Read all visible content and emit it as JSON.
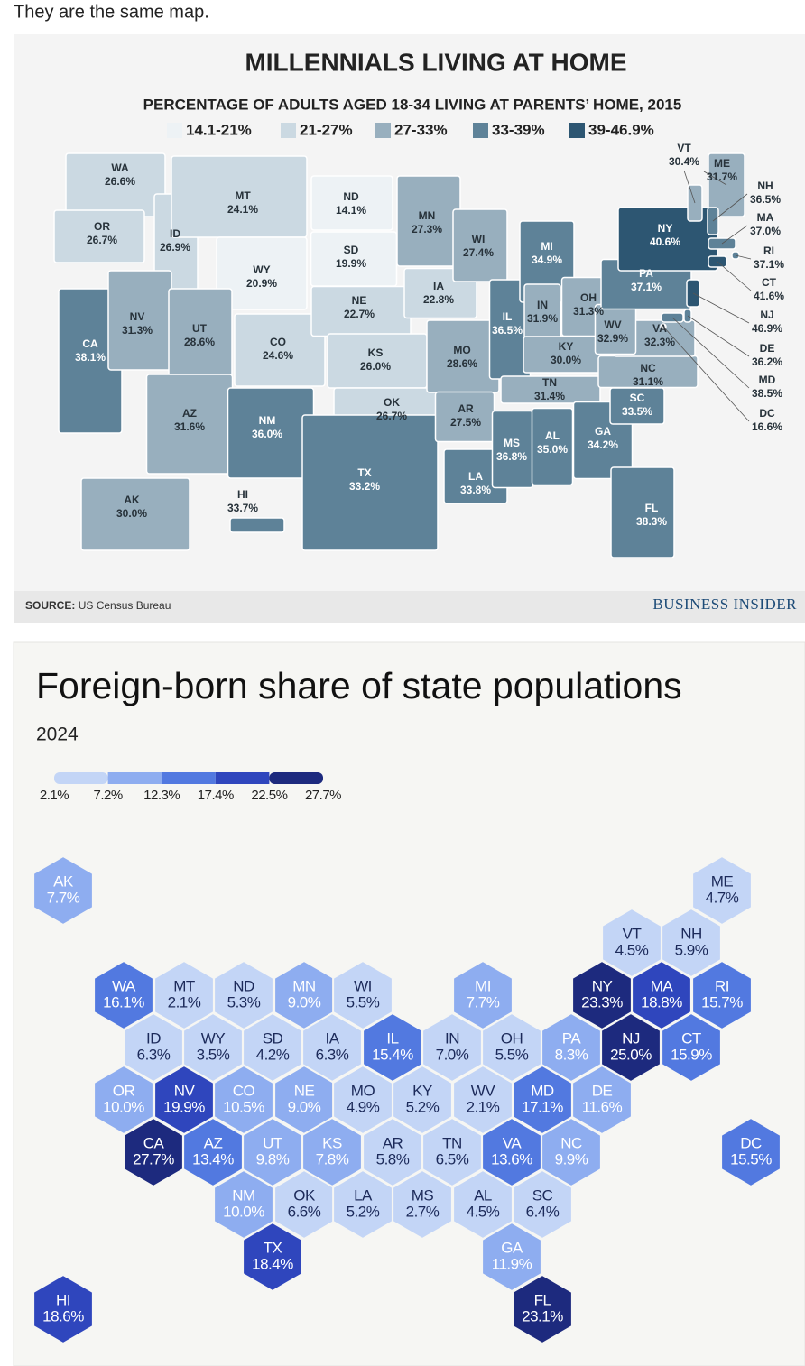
{
  "caption": "They are the same map.",
  "map1": {
    "title": "MILLENNIALS LIVING AT HOME",
    "subtitle": "PERCENTAGE OF ADULTS AGED 18-34 LIVING AT PARENTS’ HOME, 2015",
    "legend": [
      {
        "label": "14.1-21%",
        "from": 14.1,
        "to": 21,
        "color": "#edf2f5"
      },
      {
        "label": "21-27%",
        "from": 21,
        "to": 27,
        "color": "#cbd9e2"
      },
      {
        "label": "27-33%",
        "from": 27,
        "to": 33,
        "color": "#98afbe"
      },
      {
        "label": "33-39%",
        "from": 33,
        "to": 39,
        "color": "#5e8298"
      },
      {
        "label": "39-46.9%",
        "from": 39,
        "to": 46.9,
        "color": "#2d5672"
      }
    ],
    "states": [
      {
        "abbr": "WA",
        "value": 26.6,
        "label": "26.6%"
      },
      {
        "abbr": "OR",
        "value": 26.7,
        "label": "26.7%"
      },
      {
        "abbr": "CA",
        "value": 38.1,
        "label": "38.1%"
      },
      {
        "abbr": "ID",
        "value": 26.9,
        "label": "26.9%"
      },
      {
        "abbr": "NV",
        "value": 31.3,
        "label": "31.3%"
      },
      {
        "abbr": "MT",
        "value": 24.1,
        "label": "24.1%"
      },
      {
        "abbr": "WY",
        "value": 20.9,
        "label": "20.9%"
      },
      {
        "abbr": "UT",
        "value": 28.6,
        "label": "28.6%"
      },
      {
        "abbr": "AZ",
        "value": 31.6,
        "label": "31.6%"
      },
      {
        "abbr": "CO",
        "value": 24.6,
        "label": "24.6%"
      },
      {
        "abbr": "NM",
        "value": 36.0,
        "label": "36.0%"
      },
      {
        "abbr": "ND",
        "value": 14.1,
        "label": "14.1%"
      },
      {
        "abbr": "SD",
        "value": 19.9,
        "label": "19.9%"
      },
      {
        "abbr": "NE",
        "value": 22.7,
        "label": "22.7%"
      },
      {
        "abbr": "KS",
        "value": 26.0,
        "label": "26.0%"
      },
      {
        "abbr": "OK",
        "value": 26.7,
        "label": "26.7%"
      },
      {
        "abbr": "TX",
        "value": 33.2,
        "label": "33.2%"
      },
      {
        "abbr": "MN",
        "value": 27.3,
        "label": "27.3%"
      },
      {
        "abbr": "IA",
        "value": 22.8,
        "label": "22.8%"
      },
      {
        "abbr": "MO",
        "value": 28.6,
        "label": "28.6%"
      },
      {
        "abbr": "AR",
        "value": 27.5,
        "label": "27.5%"
      },
      {
        "abbr": "LA",
        "value": 33.8,
        "label": "33.8%"
      },
      {
        "abbr": "WI",
        "value": 27.4,
        "label": "27.4%"
      },
      {
        "abbr": "IL",
        "value": 36.5,
        "label": "36.5%"
      },
      {
        "abbr": "MI",
        "value": 34.9,
        "label": "34.9%"
      },
      {
        "abbr": "IN",
        "value": 31.9,
        "label": "31.9%"
      },
      {
        "abbr": "OH",
        "value": 31.3,
        "label": "31.3%"
      },
      {
        "abbr": "KY",
        "value": 30.0,
        "label": "30.0%"
      },
      {
        "abbr": "TN",
        "value": 31.4,
        "label": "31.4%"
      },
      {
        "abbr": "MS",
        "value": 36.8,
        "label": "36.8%"
      },
      {
        "abbr": "AL",
        "value": 35.0,
        "label": "35.0%"
      },
      {
        "abbr": "GA",
        "value": 34.2,
        "label": "34.2%"
      },
      {
        "abbr": "FL",
        "value": 38.3,
        "label": "38.3%"
      },
      {
        "abbr": "SC",
        "value": 33.5,
        "label": "33.5%"
      },
      {
        "abbr": "NC",
        "value": 31.1,
        "label": "31.1%"
      },
      {
        "abbr": "VA",
        "value": 32.3,
        "label": "32.3%"
      },
      {
        "abbr": "WV",
        "value": 32.9,
        "label": "32.9%"
      },
      {
        "abbr": "PA",
        "value": 37.1,
        "label": "37.1%"
      },
      {
        "abbr": "NY",
        "value": 40.6,
        "label": "40.6%"
      },
      {
        "abbr": "AK",
        "value": 30.0,
        "label": "30.0%"
      },
      {
        "abbr": "HI",
        "value": 33.7,
        "label": "33.7%"
      },
      {
        "abbr": "VT",
        "value": 30.4,
        "label": "30.4%"
      },
      {
        "abbr": "ME",
        "value": 31.7,
        "label": "31.7%"
      },
      {
        "abbr": "NH",
        "value": 36.5,
        "label": "36.5%"
      },
      {
        "abbr": "MA",
        "value": 37.0,
        "label": "37.0%"
      },
      {
        "abbr": "RI",
        "value": 37.1,
        "label": "37.1%"
      },
      {
        "abbr": "CT",
        "value": 41.6,
        "label": "41.6%"
      },
      {
        "abbr": "NJ",
        "value": 46.9,
        "label": "46.9%"
      },
      {
        "abbr": "DE",
        "value": 36.2,
        "label": "36.2%"
      },
      {
        "abbr": "MD",
        "value": 38.5,
        "label": "38.5%"
      },
      {
        "abbr": "DC",
        "value": 16.6,
        "label": "16.6%"
      }
    ],
    "source_label": "SOURCE:",
    "source": "US Census Bureau",
    "brand": "BUSINESS INSIDER"
  },
  "map2": {
    "title": "Foreign-born share of state populations",
    "subtitle": "2024",
    "legend_ticks": [
      {
        "value": 2.1,
        "label": "2.1%"
      },
      {
        "value": 7.2,
        "label": "7.2%"
      },
      {
        "value": 12.3,
        "label": "12.3%"
      },
      {
        "value": 17.4,
        "label": "17.4%"
      },
      {
        "value": 22.5,
        "label": "22.5%"
      },
      {
        "value": 27.7,
        "label": "27.7%"
      }
    ],
    "legend_colors": [
      "#c3d5f6",
      "#8eadf0",
      "#5279e0",
      "#2f46bd",
      "#1d2a7e"
    ],
    "states": [
      {
        "abbr": "AK",
        "value": 7.7,
        "label": "7.7%"
      },
      {
        "abbr": "ME",
        "value": 4.7,
        "label": "4.7%"
      },
      {
        "abbr": "VT",
        "value": 4.5,
        "label": "4.5%"
      },
      {
        "abbr": "NH",
        "value": 5.9,
        "label": "5.9%"
      },
      {
        "abbr": "WA",
        "value": 16.1,
        "label": "16.1%"
      },
      {
        "abbr": "MT",
        "value": 2.1,
        "label": "2.1%"
      },
      {
        "abbr": "ND",
        "value": 5.3,
        "label": "5.3%"
      },
      {
        "abbr": "MN",
        "value": 9.0,
        "label": "9.0%"
      },
      {
        "abbr": "WI",
        "value": 5.5,
        "label": "5.5%"
      },
      {
        "abbr": "MI",
        "value": 7.7,
        "label": "7.7%"
      },
      {
        "abbr": "NY",
        "value": 23.3,
        "label": "23.3%"
      },
      {
        "abbr": "MA",
        "value": 18.8,
        "label": "18.8%"
      },
      {
        "abbr": "RI",
        "value": 15.7,
        "label": "15.7%"
      },
      {
        "abbr": "ID",
        "value": 6.3,
        "label": "6.3%"
      },
      {
        "abbr": "WY",
        "value": 3.5,
        "label": "3.5%"
      },
      {
        "abbr": "SD",
        "value": 4.2,
        "label": "4.2%"
      },
      {
        "abbr": "IA",
        "value": 6.3,
        "label": "6.3%"
      },
      {
        "abbr": "IL",
        "value": 15.4,
        "label": "15.4%"
      },
      {
        "abbr": "IN",
        "value": 7.0,
        "label": "7.0%"
      },
      {
        "abbr": "OH",
        "value": 5.5,
        "label": "5.5%"
      },
      {
        "abbr": "PA",
        "value": 8.3,
        "label": "8.3%"
      },
      {
        "abbr": "NJ",
        "value": 25.0,
        "label": "25.0%"
      },
      {
        "abbr": "CT",
        "value": 15.9,
        "label": "15.9%"
      },
      {
        "abbr": "OR",
        "value": 10.0,
        "label": "10.0%"
      },
      {
        "abbr": "NV",
        "value": 19.9,
        "label": "19.9%"
      },
      {
        "abbr": "CO",
        "value": 10.5,
        "label": "10.5%"
      },
      {
        "abbr": "NE",
        "value": 9.0,
        "label": "9.0%"
      },
      {
        "abbr": "MO",
        "value": 4.9,
        "label": "4.9%"
      },
      {
        "abbr": "KY",
        "value": 5.2,
        "label": "5.2%"
      },
      {
        "abbr": "WV",
        "value": 2.1,
        "label": "2.1%"
      },
      {
        "abbr": "MD",
        "value": 17.1,
        "label": "17.1%"
      },
      {
        "abbr": "DE",
        "value": 11.6,
        "label": "11.6%"
      },
      {
        "abbr": "CA",
        "value": 27.7,
        "label": "27.7%"
      },
      {
        "abbr": "AZ",
        "value": 13.4,
        "label": "13.4%"
      },
      {
        "abbr": "UT",
        "value": 9.8,
        "label": "9.8%"
      },
      {
        "abbr": "KS",
        "value": 7.8,
        "label": "7.8%"
      },
      {
        "abbr": "AR",
        "value": 5.8,
        "label": "5.8%"
      },
      {
        "abbr": "TN",
        "value": 6.5,
        "label": "6.5%"
      },
      {
        "abbr": "VA",
        "value": 13.6,
        "label": "13.6%"
      },
      {
        "abbr": "NC",
        "value": 9.9,
        "label": "9.9%"
      },
      {
        "abbr": "DC",
        "value": 15.5,
        "label": "15.5%"
      },
      {
        "abbr": "NM",
        "value": 10.0,
        "label": "10.0%"
      },
      {
        "abbr": "OK",
        "value": 6.6,
        "label": "6.6%"
      },
      {
        "abbr": "LA",
        "value": 5.2,
        "label": "5.2%"
      },
      {
        "abbr": "MS",
        "value": 2.7,
        "label": "2.7%"
      },
      {
        "abbr": "AL",
        "value": 4.5,
        "label": "4.5%"
      },
      {
        "abbr": "SC",
        "value": 6.4,
        "label": "6.4%"
      },
      {
        "abbr": "TX",
        "value": 18.4,
        "label": "18.4%"
      },
      {
        "abbr": "GA",
        "value": 11.9,
        "label": "11.9%"
      },
      {
        "abbr": "FL",
        "value": 23.1,
        "label": "23.1%"
      },
      {
        "abbr": "HI",
        "value": 18.6,
        "label": "18.6%"
      }
    ]
  }
}
